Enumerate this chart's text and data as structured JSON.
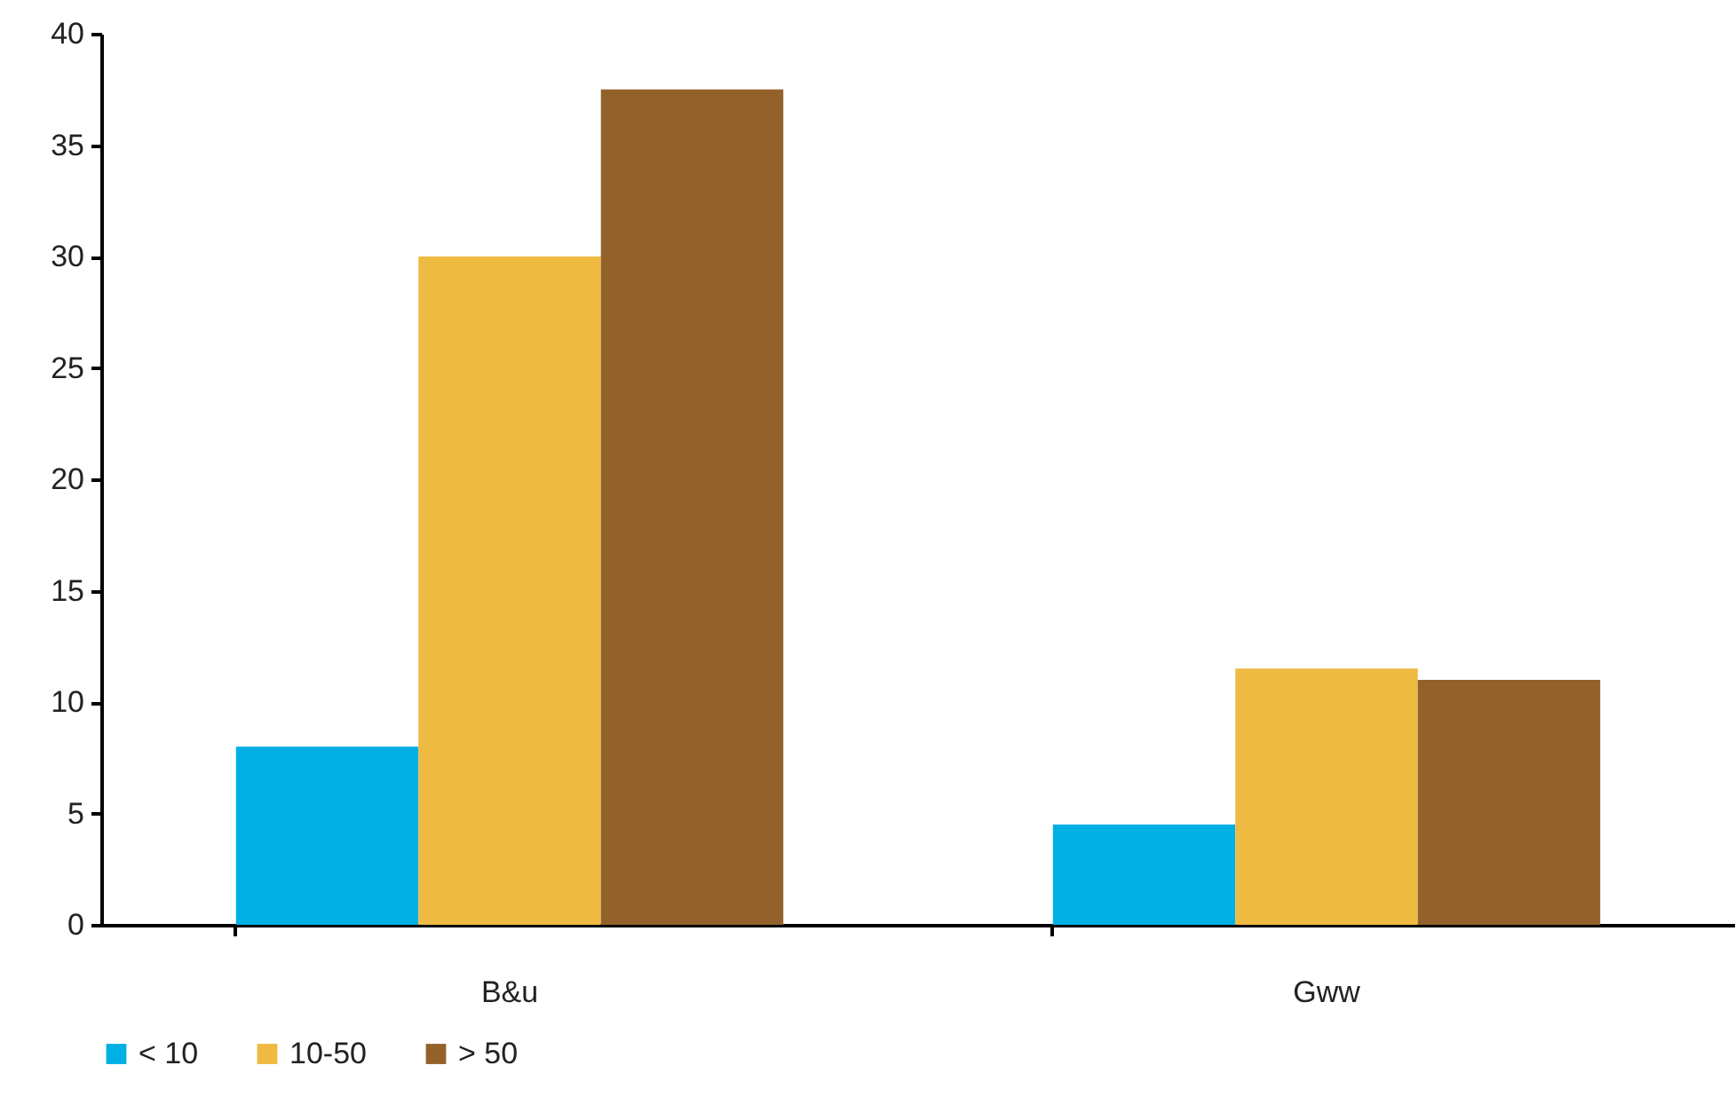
{
  "chart_data": {
    "type": "bar",
    "categories": [
      "B&u",
      "Gww"
    ],
    "series": [
      {
        "name": "< 10",
        "color": "#00b0e4",
        "values": [
          8,
          4.5
        ]
      },
      {
        "name": "10-50",
        "color": "#efba42",
        "values": [
          30,
          11.5
        ]
      },
      {
        "name": "> 50",
        "color": "#93622a",
        "values": [
          37.5,
          11
        ]
      }
    ],
    "ylim": [
      0,
      40
    ],
    "yticks": [
      0,
      5,
      10,
      15,
      20,
      25,
      30,
      35,
      40
    ],
    "grid": false,
    "legend": "bottom"
  }
}
